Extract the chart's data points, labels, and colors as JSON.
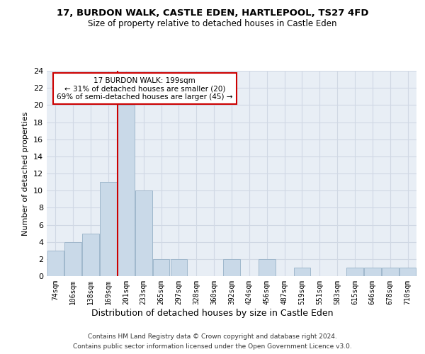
{
  "title1": "17, BURDON WALK, CASTLE EDEN, HARTLEPOOL, TS27 4FD",
  "title2": "Size of property relative to detached houses in Castle Eden",
  "xlabel": "Distribution of detached houses by size in Castle Eden",
  "ylabel": "Number of detached properties",
  "categories": [
    "74sqm",
    "106sqm",
    "138sqm",
    "169sqm",
    "201sqm",
    "233sqm",
    "265sqm",
    "297sqm",
    "328sqm",
    "360sqm",
    "392sqm",
    "424sqm",
    "456sqm",
    "487sqm",
    "519sqm",
    "551sqm",
    "583sqm",
    "615sqm",
    "646sqm",
    "678sqm",
    "710sqm"
  ],
  "values": [
    3,
    4,
    5,
    11,
    20,
    10,
    2,
    2,
    0,
    0,
    2,
    0,
    2,
    0,
    1,
    0,
    0,
    1,
    1,
    1,
    1
  ],
  "bar_color": "#c9d9e8",
  "bar_edge_color": "#a0b8cc",
  "ylim": [
    0,
    24
  ],
  "yticks": [
    0,
    2,
    4,
    6,
    8,
    10,
    12,
    14,
    16,
    18,
    20,
    22,
    24
  ],
  "red_line_index": 4,
  "annotation_text": "17 BURDON WALK: 199sqm\n← 31% of detached houses are smaller (20)\n69% of semi-detached houses are larger (45) →",
  "annotation_box_color": "#ffffff",
  "annotation_box_edge": "#cc0000",
  "footer1": "Contains HM Land Registry data © Crown copyright and database right 2024.",
  "footer2": "Contains public sector information licensed under the Open Government Licence v3.0.",
  "background_color": "#ffffff",
  "ax_bg_color": "#e8eef5",
  "grid_color": "#d0d8e4"
}
